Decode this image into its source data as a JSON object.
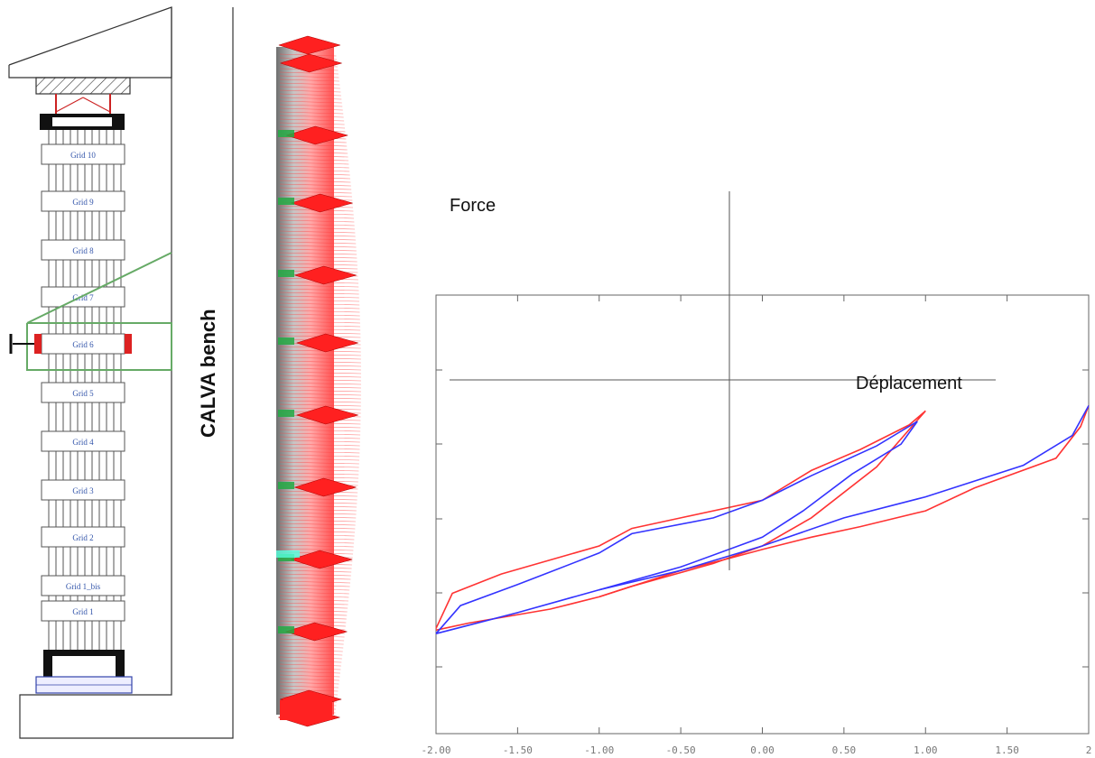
{
  "bench": {
    "title": "CALVA bench",
    "grids": [
      "Grid 10",
      "Grid 9",
      "Grid 8",
      "Grid 7",
      "Grid 6",
      "Grid 5",
      "Grid 4",
      "Grid 3",
      "Grid 2",
      "Grid 1_bis",
      "Grid 1"
    ],
    "highlighted_grid": "Grid 6"
  },
  "plot": {
    "force_label": "Force",
    "displacement_label": "Déplacement",
    "x_ticks": [
      "-2.00",
      "-1.50",
      "-1.00",
      "-0.50",
      "0.00",
      "0.50",
      "1.00",
      "1.50",
      "2"
    ],
    "colors": {
      "test": "#ff3333",
      "model": "#3333ff",
      "axes": "#555555"
    }
  },
  "chart_data": {
    "type": "line",
    "xlim": [
      -2,
      2
    ],
    "ylim": [
      -1.45,
      1.05
    ],
    "series": [
      {
        "color": "#ff3333",
        "x": [
          -2.0,
          -1.9,
          -1.6,
          -1.0,
          -0.8,
          -0.5,
          0.0,
          0.3,
          0.6,
          0.9,
          1.0,
          0.7,
          0.3,
          0.0,
          -0.3,
          -0.8,
          -1.0,
          -1.3,
          -1.8,
          -2.0
        ],
        "y": [
          -0.85,
          -0.65,
          -0.54,
          -0.38,
          -0.28,
          -0.22,
          -0.12,
          0.05,
          0.17,
          0.31,
          0.39,
          0.07,
          -0.22,
          -0.38,
          -0.48,
          -0.61,
          -0.67,
          -0.74,
          -0.82,
          -0.86
        ]
      },
      {
        "color": "#ff3333",
        "x": [
          -1.0,
          -0.5,
          -0.2,
          0.0,
          0.3,
          0.6,
          1.0,
          1.3,
          1.8,
          1.95,
          2.0
        ],
        "y": [
          -0.67,
          -0.52,
          -0.45,
          -0.4,
          -0.33,
          -0.27,
          -0.18,
          -0.05,
          0.12,
          0.3,
          0.42
        ]
      },
      {
        "color": "#3333ff",
        "x": [
          -2.0,
          -1.85,
          -1.5,
          -1.0,
          -0.8,
          -0.3,
          0.0,
          0.3,
          0.7,
          0.95,
          0.85,
          0.55,
          0.25,
          0.0,
          -0.5,
          -1.0,
          -1.5,
          -2.0
        ],
        "y": [
          -0.88,
          -0.72,
          -0.6,
          -0.42,
          -0.31,
          -0.22,
          -0.12,
          0.02,
          0.19,
          0.33,
          0.2,
          0.03,
          -0.18,
          -0.33,
          -0.5,
          -0.63,
          -0.76,
          -0.88
        ]
      },
      {
        "color": "#3333ff",
        "x": [
          -1.0,
          -0.5,
          0.0,
          0.5,
          1.0,
          1.6,
          1.9,
          2.0
        ],
        "y": [
          -0.63,
          -0.52,
          -0.38,
          -0.22,
          -0.1,
          0.08,
          0.25,
          0.42
        ]
      }
    ]
  }
}
